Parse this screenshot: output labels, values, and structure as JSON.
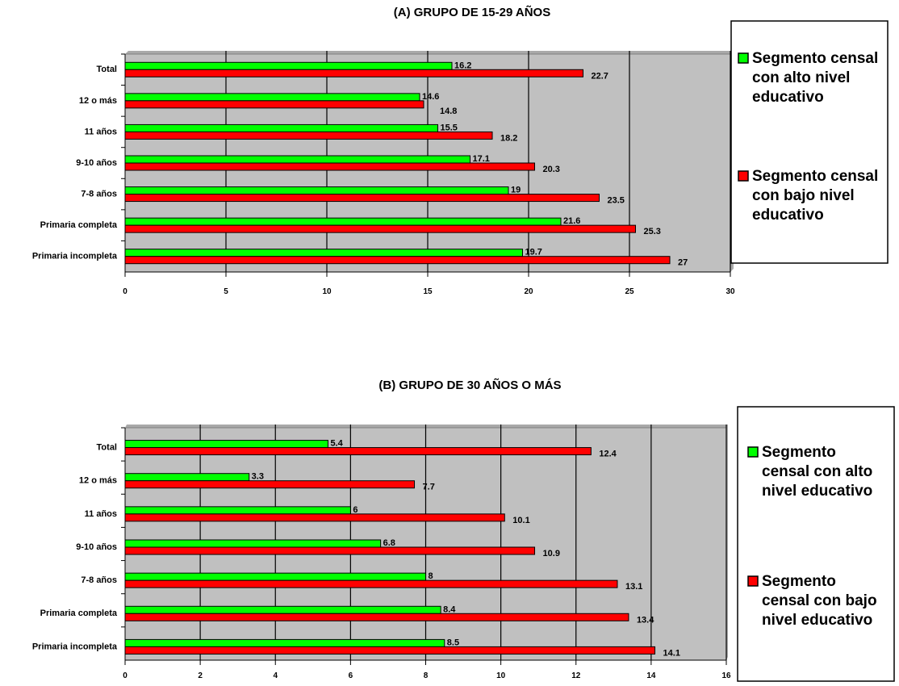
{
  "colors": {
    "green": "#00ff00",
    "red": "#ff0000",
    "plot_bg": "#c0c0c0"
  },
  "chart_data": [
    {
      "type": "bar",
      "orientation": "horizontal",
      "title": "(A) GRUPO DE 15-29 AÑOS",
      "categories": [
        "Total",
        "12 o más",
        "11 años",
        "9-10 años",
        "7-8 años",
        "Primaria completa",
        "Primaria incompleta"
      ],
      "series": [
        {
          "name": "Segmento censal con alto nivel educativo",
          "values": [
            16.2,
            14.6,
            15.5,
            17.1,
            19,
            21.6,
            19.7
          ]
        },
        {
          "name": "Segmento censal con bajo nivel educativo",
          "values": [
            22.7,
            14.8,
            18.2,
            20.3,
            23.5,
            25.3,
            27
          ]
        }
      ],
      "xlim": [
        0,
        30
      ],
      "xticks": [
        0,
        5,
        10,
        15,
        20,
        25,
        30
      ],
      "grid": true,
      "legend": "right",
      "legend_lines": [
        [
          "Segmento censal",
          "con alto nivel",
          "educativo"
        ],
        [
          "Segmento censal",
          "con bajo nivel",
          "educativo"
        ]
      ]
    },
    {
      "type": "bar",
      "orientation": "horizontal",
      "title": "(B) GRUPO DE 30 AÑOS O MÁS",
      "categories": [
        "Total",
        "12 o más",
        "11 años",
        "9-10 años",
        "7-8 años",
        "Primaria completa",
        "Primaria incompleta"
      ],
      "series": [
        {
          "name": "Segmento censal con alto nivel educativo",
          "values": [
            5.4,
            3.3,
            6,
            6.8,
            8,
            8.4,
            8.5
          ]
        },
        {
          "name": "Segmento censal con bajo nivel educativo",
          "values": [
            12.4,
            7.7,
            10.1,
            10.9,
            13.1,
            13.4,
            14.1
          ]
        }
      ],
      "xlim": [
        0,
        16
      ],
      "xticks": [
        0,
        2,
        4,
        6,
        8,
        10,
        12,
        14,
        16
      ],
      "grid": true,
      "legend": "right",
      "legend_lines": [
        [
          "Segmento",
          "censal con alto",
          "nivel educativo"
        ],
        [
          "Segmento",
          "censal con bajo",
          "nivel educativo"
        ]
      ]
    }
  ]
}
